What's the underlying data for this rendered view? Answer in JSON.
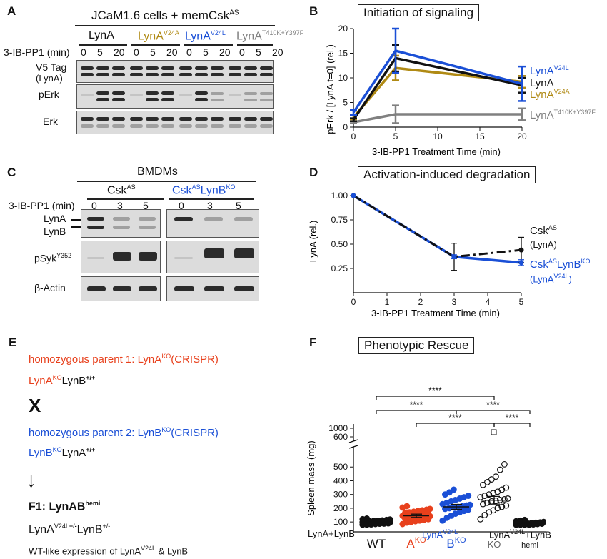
{
  "panels": {
    "A": {
      "label": "A",
      "title": "JCaM1.6 cells + memCsk",
      "title_sup": "AS",
      "groups": [
        "LynA",
        "LynA",
        "LynA",
        "LynA"
      ],
      "group_sups": [
        "",
        "V24A",
        "V24L",
        "T410K+Y397F"
      ],
      "row_header": "3-IB-PP1 (min)",
      "timepoints": [
        "0",
        "5",
        "20"
      ],
      "rows": [
        "V5 Tag",
        "(LynA)",
        "pErk",
        "Erk"
      ]
    },
    "B": {
      "label": "B",
      "title": "Initiation of signaling",
      "ylabel": "pErk / [LynA t=0] (rel.)",
      "xlabel": "3-IB-PP1 Treatment Time (min)",
      "legend_sups": [
        "V24L",
        "",
        "V24A",
        "T410K+Y397F"
      ]
    },
    "C": {
      "label": "C",
      "title": "BMDMs",
      "group1": "Csk",
      "group1_sup": "AS",
      "group2": "Csk",
      "group2_sup": "AS",
      "group2_b": "LynB",
      "group2_b_sup": "KO",
      "row_header": "3-IB-PP1 (min)",
      "timepoints": [
        "0",
        "3",
        "5"
      ],
      "rows": [
        "LynA",
        "LynB",
        "pSyk",
        "β-Actin"
      ],
      "psyk_sup": "Y352"
    },
    "D": {
      "label": "D",
      "title": "Activation-induced degradation",
      "ylabel": "LynA (rel.)",
      "xlabel": "3-IB-PP1 Treatment Time (min)",
      "legend": [
        {
          "text": "Csk",
          "sup": "AS",
          "text2": "",
          "sup2": "",
          "sub": "(LynA)",
          "subsup": "",
          "subend": "",
          "color": "#111111"
        },
        {
          "text": "Csk",
          "sup": "AS",
          "text2": "LynB",
          "sup2": "KO",
          "sub": "(LynA",
          "subsup": "V24L",
          "subend": ")",
          "color": "#1a4fd6"
        }
      ]
    },
    "E": {
      "label": "E",
      "parent1": "homozygous parent 1: LynA",
      "parent1_sup": "KO",
      "parent1_end": "(CRISPR)",
      "parent1_geno": "LynA",
      "parent1_geno_sup": "KO",
      "parent1_geno_mid": "LynB",
      "parent1_geno_end": "+/+",
      "cross": "X",
      "parent2": "homozygous parent 2: LynB",
      "parent2_sup": "KO",
      "parent2_end": "(CRISPR)",
      "parent2_geno": "LynB",
      "parent2_geno_sup": "KO",
      "parent2_geno_mid": "LynA",
      "parent2_geno_end": "+/+",
      "arrow": "↓",
      "f1": "F1: LynAB",
      "f1_sup": "hemi",
      "f1_geno": "LynA",
      "f1_geno_sup1": "V24L",
      "f1_geno_sup2": "+/-",
      "f1_geno_mid": "LynB",
      "f1_geno_sup3": "+/-",
      "note": "WT-like expression of LynA",
      "note_sup": "V24L",
      "note_end": " & LynB"
    },
    "F": {
      "label": "F",
      "title": "Phenotypic Rescue",
      "ylabel": "Spleen mass (mg)",
      "significance": "****",
      "group_labels": [
        "WT",
        "A",
        "B",
        "KO",
        "hemi"
      ],
      "group_label_sups": [
        "",
        "KO",
        "KO",
        "",
        ""
      ],
      "sub_labels": [
        "LynA+LynB",
        "LynA",
        "LynA"
      ],
      "sub_label_sups": [
        "",
        "V24L",
        "V24L"
      ],
      "sub_label_ends": [
        "",
        "",
        "+LynB"
      ]
    }
  },
  "chart_data": [
    {
      "panel": "B",
      "type": "line",
      "title": "Initiation of signaling",
      "xlabel": "3-IB-PP1 Treatment Time (min)",
      "ylabel": "pErk / [LynA t=0] (rel.)",
      "x": [
        0,
        5,
        20
      ],
      "xticks": [
        0,
        5,
        10,
        15,
        20
      ],
      "yticks": [
        0,
        5,
        10,
        15,
        20
      ],
      "xlim": [
        0,
        20
      ],
      "ylim": [
        0,
        20
      ],
      "series": [
        {
          "name": "LynA V24L",
          "color": "#1a4fd6",
          "values": [
            3.0,
            15.5,
            8.8
          ],
          "err": [
            0.5,
            4.5,
            3.5
          ]
        },
        {
          "name": "LynA",
          "color": "#111111",
          "values": [
            1.5,
            14.0,
            8.5
          ],
          "err": [
            0.3,
            2.7,
            1.5
          ]
        },
        {
          "name": "LynA V24A",
          "color": "#b08a14",
          "values": [
            2.0,
            12.0,
            9.2
          ],
          "err": [
            0.4,
            2.5,
            1.2
          ]
        },
        {
          "name": "LynA T410K+Y397F",
          "color": "#808080",
          "values": [
            1.0,
            2.6,
            2.6
          ],
          "err": [
            0.2,
            1.8,
            1.2
          ]
        }
      ]
    },
    {
      "panel": "D",
      "type": "line",
      "title": "Activation-induced degradation",
      "xlabel": "3-IB-PP1 Treatment Time (min)",
      "ylabel": "LynA (rel.)",
      "x": [
        0,
        3,
        5
      ],
      "xticks": [
        0,
        1,
        2,
        3,
        4,
        5
      ],
      "yticks": [
        0.25,
        0.5,
        0.75,
        1.0
      ],
      "ytick_labels": [
        "0.25",
        "0.50",
        "0.75",
        "1.00"
      ],
      "xlim": [
        0,
        5
      ],
      "ylim": [
        0,
        1
      ],
      "series": [
        {
          "name": "Csk AS (LynA)",
          "color": "#111111",
          "values": [
            1.0,
            0.37,
            0.44
          ],
          "err": [
            0,
            0.14,
            0.13
          ]
        },
        {
          "name": "Csk AS LynB KO (LynA V24L)",
          "color": "#1a4fd6",
          "values": [
            1.0,
            0.37,
            0.31
          ],
          "err": [
            0,
            0.02,
            0.03
          ]
        }
      ]
    },
    {
      "panel": "F",
      "type": "scatter",
      "title": "Phenotypic Rescue",
      "ylabel": "Spleen mass (mg)",
      "yticks": [
        100,
        200,
        300,
        400,
        500,
        600,
        1000
      ],
      "categories": [
        "WT",
        "A KO",
        "B KO",
        "KO",
        "hemi"
      ],
      "series": [
        {
          "name": "WT",
          "color": "#111111",
          "mean": 100,
          "sem": 6,
          "values": [
            75,
            80,
            82,
            85,
            87,
            88,
            90,
            91,
            92,
            93,
            94,
            95,
            96,
            97,
            98,
            99,
            100,
            101,
            102,
            103,
            104,
            105,
            106,
            108,
            110,
            112,
            115,
            118,
            120,
            125
          ]
        },
        {
          "name": "A KO",
          "color": "#e8401c",
          "mean": 145,
          "sem": 12,
          "values": [
            85,
            95,
            100,
            105,
            110,
            115,
            120,
            125,
            128,
            132,
            135,
            138,
            140,
            142,
            145,
            148,
            150,
            152,
            155,
            158,
            162,
            165,
            170,
            175,
            180,
            185,
            190,
            195,
            205,
            215
          ]
        },
        {
          "name": "B KO",
          "color": "#1a4fd6",
          "mean": 210,
          "sem": 18,
          "values": [
            110,
            130,
            145,
            160,
            170,
            180,
            190,
            195,
            200,
            205,
            210,
            215,
            220,
            225,
            230,
            240,
            250,
            260,
            270,
            280,
            290,
            300,
            315,
            335
          ]
        },
        {
          "name": "KO",
          "color": "#111111",
          "mean": 258,
          "sem": 28,
          "values": [
            120,
            150,
            170,
            185,
            200,
            210,
            220,
            230,
            240,
            250,
            255,
            260,
            265,
            270,
            280,
            290,
            300,
            310,
            320,
            335,
            350,
            370,
            390,
            410,
            430,
            480,
            520
          ]
        },
        {
          "name": "hemi",
          "color": "#111111",
          "mean": 90,
          "sem": 5,
          "values": [
            70,
            75,
            78,
            80,
            82,
            85,
            87,
            88,
            90,
            91,
            93,
            95,
            97,
            100,
            105,
            110,
            115
          ]
        }
      ],
      "comparisons": [
        {
          "from": "WT",
          "to": "KO",
          "label": "****"
        },
        {
          "from": "WT",
          "to": "B KO",
          "label": "****"
        },
        {
          "from": "B KO",
          "to": "hemi",
          "label": "****"
        },
        {
          "from": "A KO",
          "to": "KO",
          "label": "****"
        },
        {
          "from": "KO",
          "to": "hemi",
          "label": "****"
        }
      ]
    }
  ]
}
